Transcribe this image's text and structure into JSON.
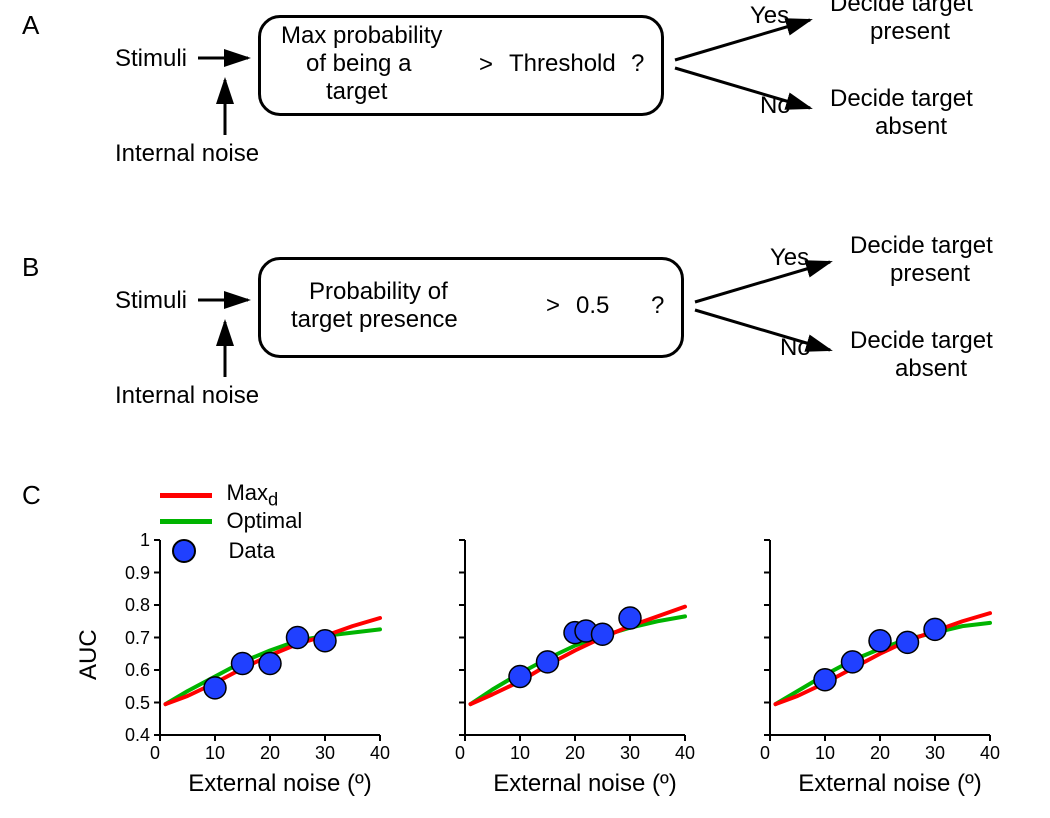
{
  "panel_labels": {
    "a": "A",
    "b": "B",
    "c": "C"
  },
  "flowchart_a": {
    "stimuli": "Stimuli",
    "internal_noise": "Internal noise",
    "box_line1": "Max probability",
    "box_line2": "of being a",
    "box_line3": "target",
    "gt": ">",
    "threshold": "Threshold",
    "qmark": "?",
    "yes": "Yes",
    "no": "No",
    "decide_present_l1": "Decide target",
    "decide_present_l2": "present",
    "decide_absent_l1": "Decide target",
    "decide_absent_l2": "absent",
    "box_border_color": "#000000",
    "text_color": "#000000"
  },
  "flowchart_b": {
    "stimuli": "Stimuli",
    "internal_noise": "Internal noise",
    "box_line1": "Probability of",
    "box_line2": "target presence",
    "gt": ">",
    "threshold": "0.5",
    "qmark": "?",
    "yes": "Yes",
    "no": "No",
    "decide_present_l1": "Decide target",
    "decide_present_l2": "present",
    "decide_absent_l1": "Decide target",
    "decide_absent_l2": "absent"
  },
  "charts": {
    "structure": "three side-by-side line+scatter subplots",
    "ylabel": "AUC",
    "xlabel": "External noise (º)",
    "xlim": [
      0,
      40
    ],
    "ylim": [
      0.4,
      1.0
    ],
    "xticks": [
      0,
      10,
      20,
      30,
      40
    ],
    "yticks": [
      0.4,
      0.5,
      0.6,
      0.7,
      0.8,
      0.9,
      1.0
    ],
    "xticklabels": [
      "0",
      "10",
      "20",
      "30",
      "40"
    ],
    "yticklabels": [
      "0.4",
      "0.5",
      "0.6",
      "0.7",
      "0.8",
      "0.9",
      "1"
    ],
    "tick_fontsize": 18,
    "label_fontsize": 24,
    "line_width": 4,
    "marker_size": 11,
    "marker_edge_width": 1.5,
    "marker_edge_color": "#000000",
    "axis_color": "#000000",
    "background_color": "#ffffff",
    "legend": {
      "items": [
        {
          "label": "Max",
          "sub": "d",
          "type": "line",
          "color": "#ff0000"
        },
        {
          "label": "Optimal",
          "type": "line",
          "color": "#00b400"
        },
        {
          "label": "Data",
          "type": "marker",
          "color": "#2040ff"
        }
      ]
    },
    "series_colors": {
      "maxd": "#ff0000",
      "optimal": "#00b400",
      "data": "#2040ff"
    },
    "panels": [
      {
        "maxd_line": {
          "x": [
            1,
            5,
            10,
            15,
            20,
            25,
            30,
            35,
            40
          ],
          "y": [
            0.495,
            0.52,
            0.56,
            0.605,
            0.645,
            0.68,
            0.705,
            0.735,
            0.76
          ]
        },
        "optimal_line": {
          "x": [
            1,
            5,
            10,
            15,
            20,
            25,
            30,
            35,
            40
          ],
          "y": [
            0.495,
            0.535,
            0.58,
            0.625,
            0.66,
            0.69,
            0.705,
            0.715,
            0.725
          ]
        },
        "data_points": {
          "x": [
            10,
            15,
            20,
            25,
            30
          ],
          "y": [
            0.545,
            0.62,
            0.62,
            0.7,
            0.69
          ]
        }
      },
      {
        "maxd_line": {
          "x": [
            1,
            5,
            10,
            15,
            20,
            25,
            30,
            35,
            40
          ],
          "y": [
            0.495,
            0.525,
            0.565,
            0.615,
            0.66,
            0.7,
            0.735,
            0.765,
            0.795
          ]
        },
        "optimal_line": {
          "x": [
            1,
            5,
            10,
            15,
            20,
            25,
            30,
            35,
            40
          ],
          "y": [
            0.495,
            0.54,
            0.59,
            0.635,
            0.675,
            0.705,
            0.73,
            0.75,
            0.765
          ]
        },
        "data_points": {
          "x": [
            10,
            15,
            20,
            22,
            25,
            30
          ],
          "y": [
            0.58,
            0.625,
            0.715,
            0.72,
            0.71,
            0.76
          ]
        }
      },
      {
        "maxd_line": {
          "x": [
            1,
            5,
            10,
            15,
            20,
            25,
            30,
            35,
            40
          ],
          "y": [
            0.495,
            0.52,
            0.56,
            0.605,
            0.65,
            0.69,
            0.72,
            0.75,
            0.775
          ]
        },
        "optimal_line": {
          "x": [
            1,
            5,
            10,
            15,
            20,
            25,
            30,
            35,
            40
          ],
          "y": [
            0.495,
            0.535,
            0.585,
            0.63,
            0.665,
            0.695,
            0.715,
            0.735,
            0.745
          ]
        },
        "data_points": {
          "x": [
            10,
            15,
            20,
            25,
            30
          ],
          "y": [
            0.57,
            0.625,
            0.69,
            0.685,
            0.725
          ]
        }
      }
    ]
  }
}
